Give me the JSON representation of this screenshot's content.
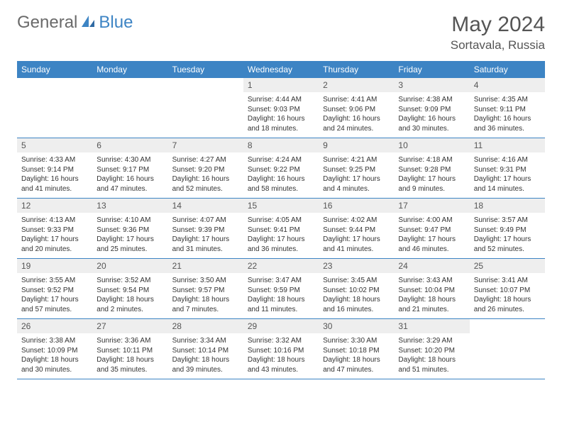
{
  "brand": {
    "part1": "General",
    "part2": "Blue"
  },
  "title": "May 2024",
  "location": "Sortavala, Russia",
  "colors": {
    "header_bg": "#3d84c4",
    "header_text": "#ffffff",
    "daynum_bg": "#eeeeee",
    "body_bg": "#ffffff",
    "text": "#333333",
    "brand_gray": "#6a6a6a",
    "brand_blue": "#3d84c4"
  },
  "weekdays": [
    "Sunday",
    "Monday",
    "Tuesday",
    "Wednesday",
    "Thursday",
    "Friday",
    "Saturday"
  ],
  "weeks": [
    [
      null,
      null,
      null,
      {
        "n": "1",
        "sr": "4:44 AM",
        "ss": "9:03 PM",
        "dl": "16 hours and 18 minutes."
      },
      {
        "n": "2",
        "sr": "4:41 AM",
        "ss": "9:06 PM",
        "dl": "16 hours and 24 minutes."
      },
      {
        "n": "3",
        "sr": "4:38 AM",
        "ss": "9:09 PM",
        "dl": "16 hours and 30 minutes."
      },
      {
        "n": "4",
        "sr": "4:35 AM",
        "ss": "9:11 PM",
        "dl": "16 hours and 36 minutes."
      }
    ],
    [
      {
        "n": "5",
        "sr": "4:33 AM",
        "ss": "9:14 PM",
        "dl": "16 hours and 41 minutes."
      },
      {
        "n": "6",
        "sr": "4:30 AM",
        "ss": "9:17 PM",
        "dl": "16 hours and 47 minutes."
      },
      {
        "n": "7",
        "sr": "4:27 AM",
        "ss": "9:20 PM",
        "dl": "16 hours and 52 minutes."
      },
      {
        "n": "8",
        "sr": "4:24 AM",
        "ss": "9:22 PM",
        "dl": "16 hours and 58 minutes."
      },
      {
        "n": "9",
        "sr": "4:21 AM",
        "ss": "9:25 PM",
        "dl": "17 hours and 4 minutes."
      },
      {
        "n": "10",
        "sr": "4:18 AM",
        "ss": "9:28 PM",
        "dl": "17 hours and 9 minutes."
      },
      {
        "n": "11",
        "sr": "4:16 AM",
        "ss": "9:31 PM",
        "dl": "17 hours and 14 minutes."
      }
    ],
    [
      {
        "n": "12",
        "sr": "4:13 AM",
        "ss": "9:33 PM",
        "dl": "17 hours and 20 minutes."
      },
      {
        "n": "13",
        "sr": "4:10 AM",
        "ss": "9:36 PM",
        "dl": "17 hours and 25 minutes."
      },
      {
        "n": "14",
        "sr": "4:07 AM",
        "ss": "9:39 PM",
        "dl": "17 hours and 31 minutes."
      },
      {
        "n": "15",
        "sr": "4:05 AM",
        "ss": "9:41 PM",
        "dl": "17 hours and 36 minutes."
      },
      {
        "n": "16",
        "sr": "4:02 AM",
        "ss": "9:44 PM",
        "dl": "17 hours and 41 minutes."
      },
      {
        "n": "17",
        "sr": "4:00 AM",
        "ss": "9:47 PM",
        "dl": "17 hours and 46 minutes."
      },
      {
        "n": "18",
        "sr": "3:57 AM",
        "ss": "9:49 PM",
        "dl": "17 hours and 52 minutes."
      }
    ],
    [
      {
        "n": "19",
        "sr": "3:55 AM",
        "ss": "9:52 PM",
        "dl": "17 hours and 57 minutes."
      },
      {
        "n": "20",
        "sr": "3:52 AM",
        "ss": "9:54 PM",
        "dl": "18 hours and 2 minutes."
      },
      {
        "n": "21",
        "sr": "3:50 AM",
        "ss": "9:57 PM",
        "dl": "18 hours and 7 minutes."
      },
      {
        "n": "22",
        "sr": "3:47 AM",
        "ss": "9:59 PM",
        "dl": "18 hours and 11 minutes."
      },
      {
        "n": "23",
        "sr": "3:45 AM",
        "ss": "10:02 PM",
        "dl": "18 hours and 16 minutes."
      },
      {
        "n": "24",
        "sr": "3:43 AM",
        "ss": "10:04 PM",
        "dl": "18 hours and 21 minutes."
      },
      {
        "n": "25",
        "sr": "3:41 AM",
        "ss": "10:07 PM",
        "dl": "18 hours and 26 minutes."
      }
    ],
    [
      {
        "n": "26",
        "sr": "3:38 AM",
        "ss": "10:09 PM",
        "dl": "18 hours and 30 minutes."
      },
      {
        "n": "27",
        "sr": "3:36 AM",
        "ss": "10:11 PM",
        "dl": "18 hours and 35 minutes."
      },
      {
        "n": "28",
        "sr": "3:34 AM",
        "ss": "10:14 PM",
        "dl": "18 hours and 39 minutes."
      },
      {
        "n": "29",
        "sr": "3:32 AM",
        "ss": "10:16 PM",
        "dl": "18 hours and 43 minutes."
      },
      {
        "n": "30",
        "sr": "3:30 AM",
        "ss": "10:18 PM",
        "dl": "18 hours and 47 minutes."
      },
      {
        "n": "31",
        "sr": "3:29 AM",
        "ss": "10:20 PM",
        "dl": "18 hours and 51 minutes."
      },
      null
    ]
  ],
  "labels": {
    "sunrise": "Sunrise:",
    "sunset": "Sunset:",
    "daylight": "Daylight:"
  }
}
